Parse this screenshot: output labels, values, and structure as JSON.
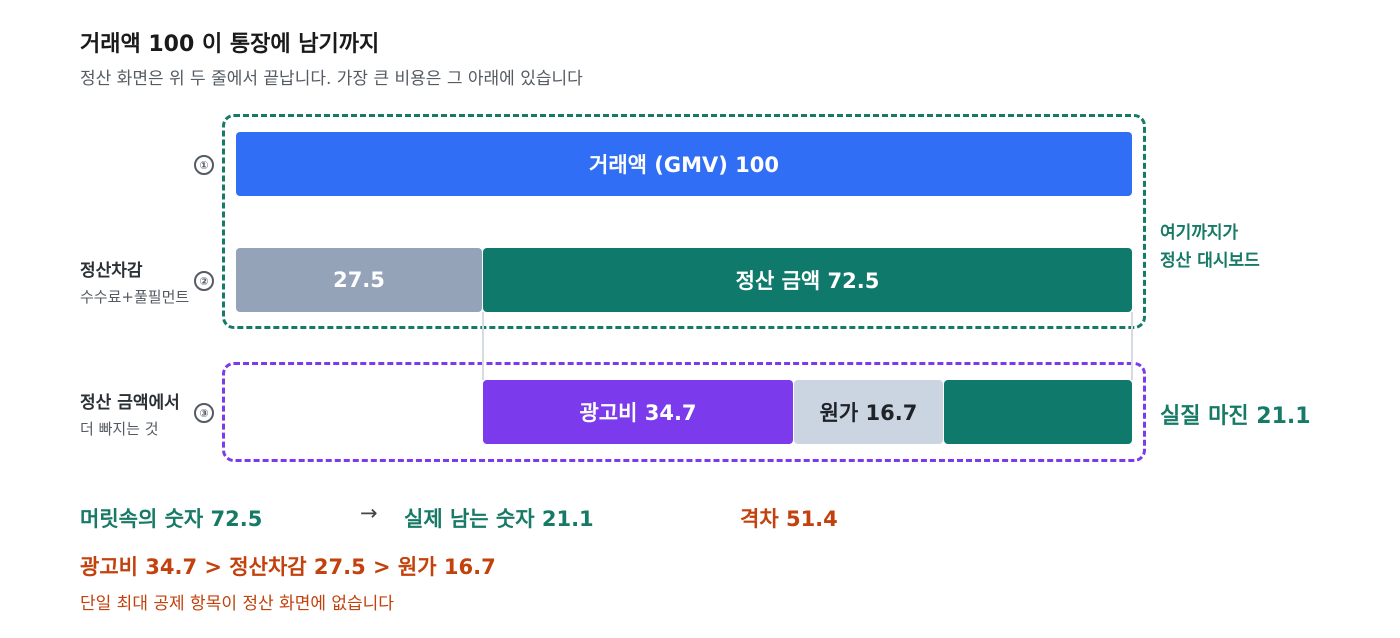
{
  "header": {
    "title": "거래액 100 이 통장에 남기까지",
    "subtitle": "정산 화면은 위 두 줄에서 끝납니다. 가장 큰 비용은 그 아래에 있습니다"
  },
  "steps": [
    "①",
    "②",
    "③"
  ],
  "rows": {
    "gmv": {
      "label": "거래액 (GMV) 100",
      "value": 100
    },
    "deduction": {
      "label": "정산차감",
      "sublabel": "수수료+풀필먼트",
      "value_text": "27.5",
      "value": 27.5
    },
    "settlement": {
      "label": "정산 금액 72.5",
      "value": 72.5
    },
    "below": {
      "label": "정산 금액에서",
      "sublabel": "더 빠지는 것",
      "ads": {
        "label": "광고비 34.7",
        "value": 34.7
      },
      "cogs": {
        "label": "원가 16.7",
        "value": 16.7
      },
      "margin": {
        "value": 21.1
      }
    }
  },
  "side_notes": {
    "dashboard_line1": "여기까지가",
    "dashboard_line2": "정산 대시보드",
    "real_margin": "실질 마진 21.1"
  },
  "summary": {
    "perceived": "머릿속의 숫자 72.5",
    "arrow": "→",
    "actual": "실제 남는 숫자 21.1",
    "gap": "격차 51.4",
    "ranking": "광고비 34.7 > 정산차감 27.5 > 원가 16.7",
    "note": "단일 최대 공제 항목이 정산 화면에 없습니다"
  },
  "colors": {
    "gmv": "#2f6ef5",
    "deduction": "#94a3b8",
    "settlement": "#0f7a6c",
    "ads": "#7c3aed",
    "cogs": "#cbd5e1",
    "margin": "#0f7a6c",
    "highlight": "#c2410c"
  }
}
